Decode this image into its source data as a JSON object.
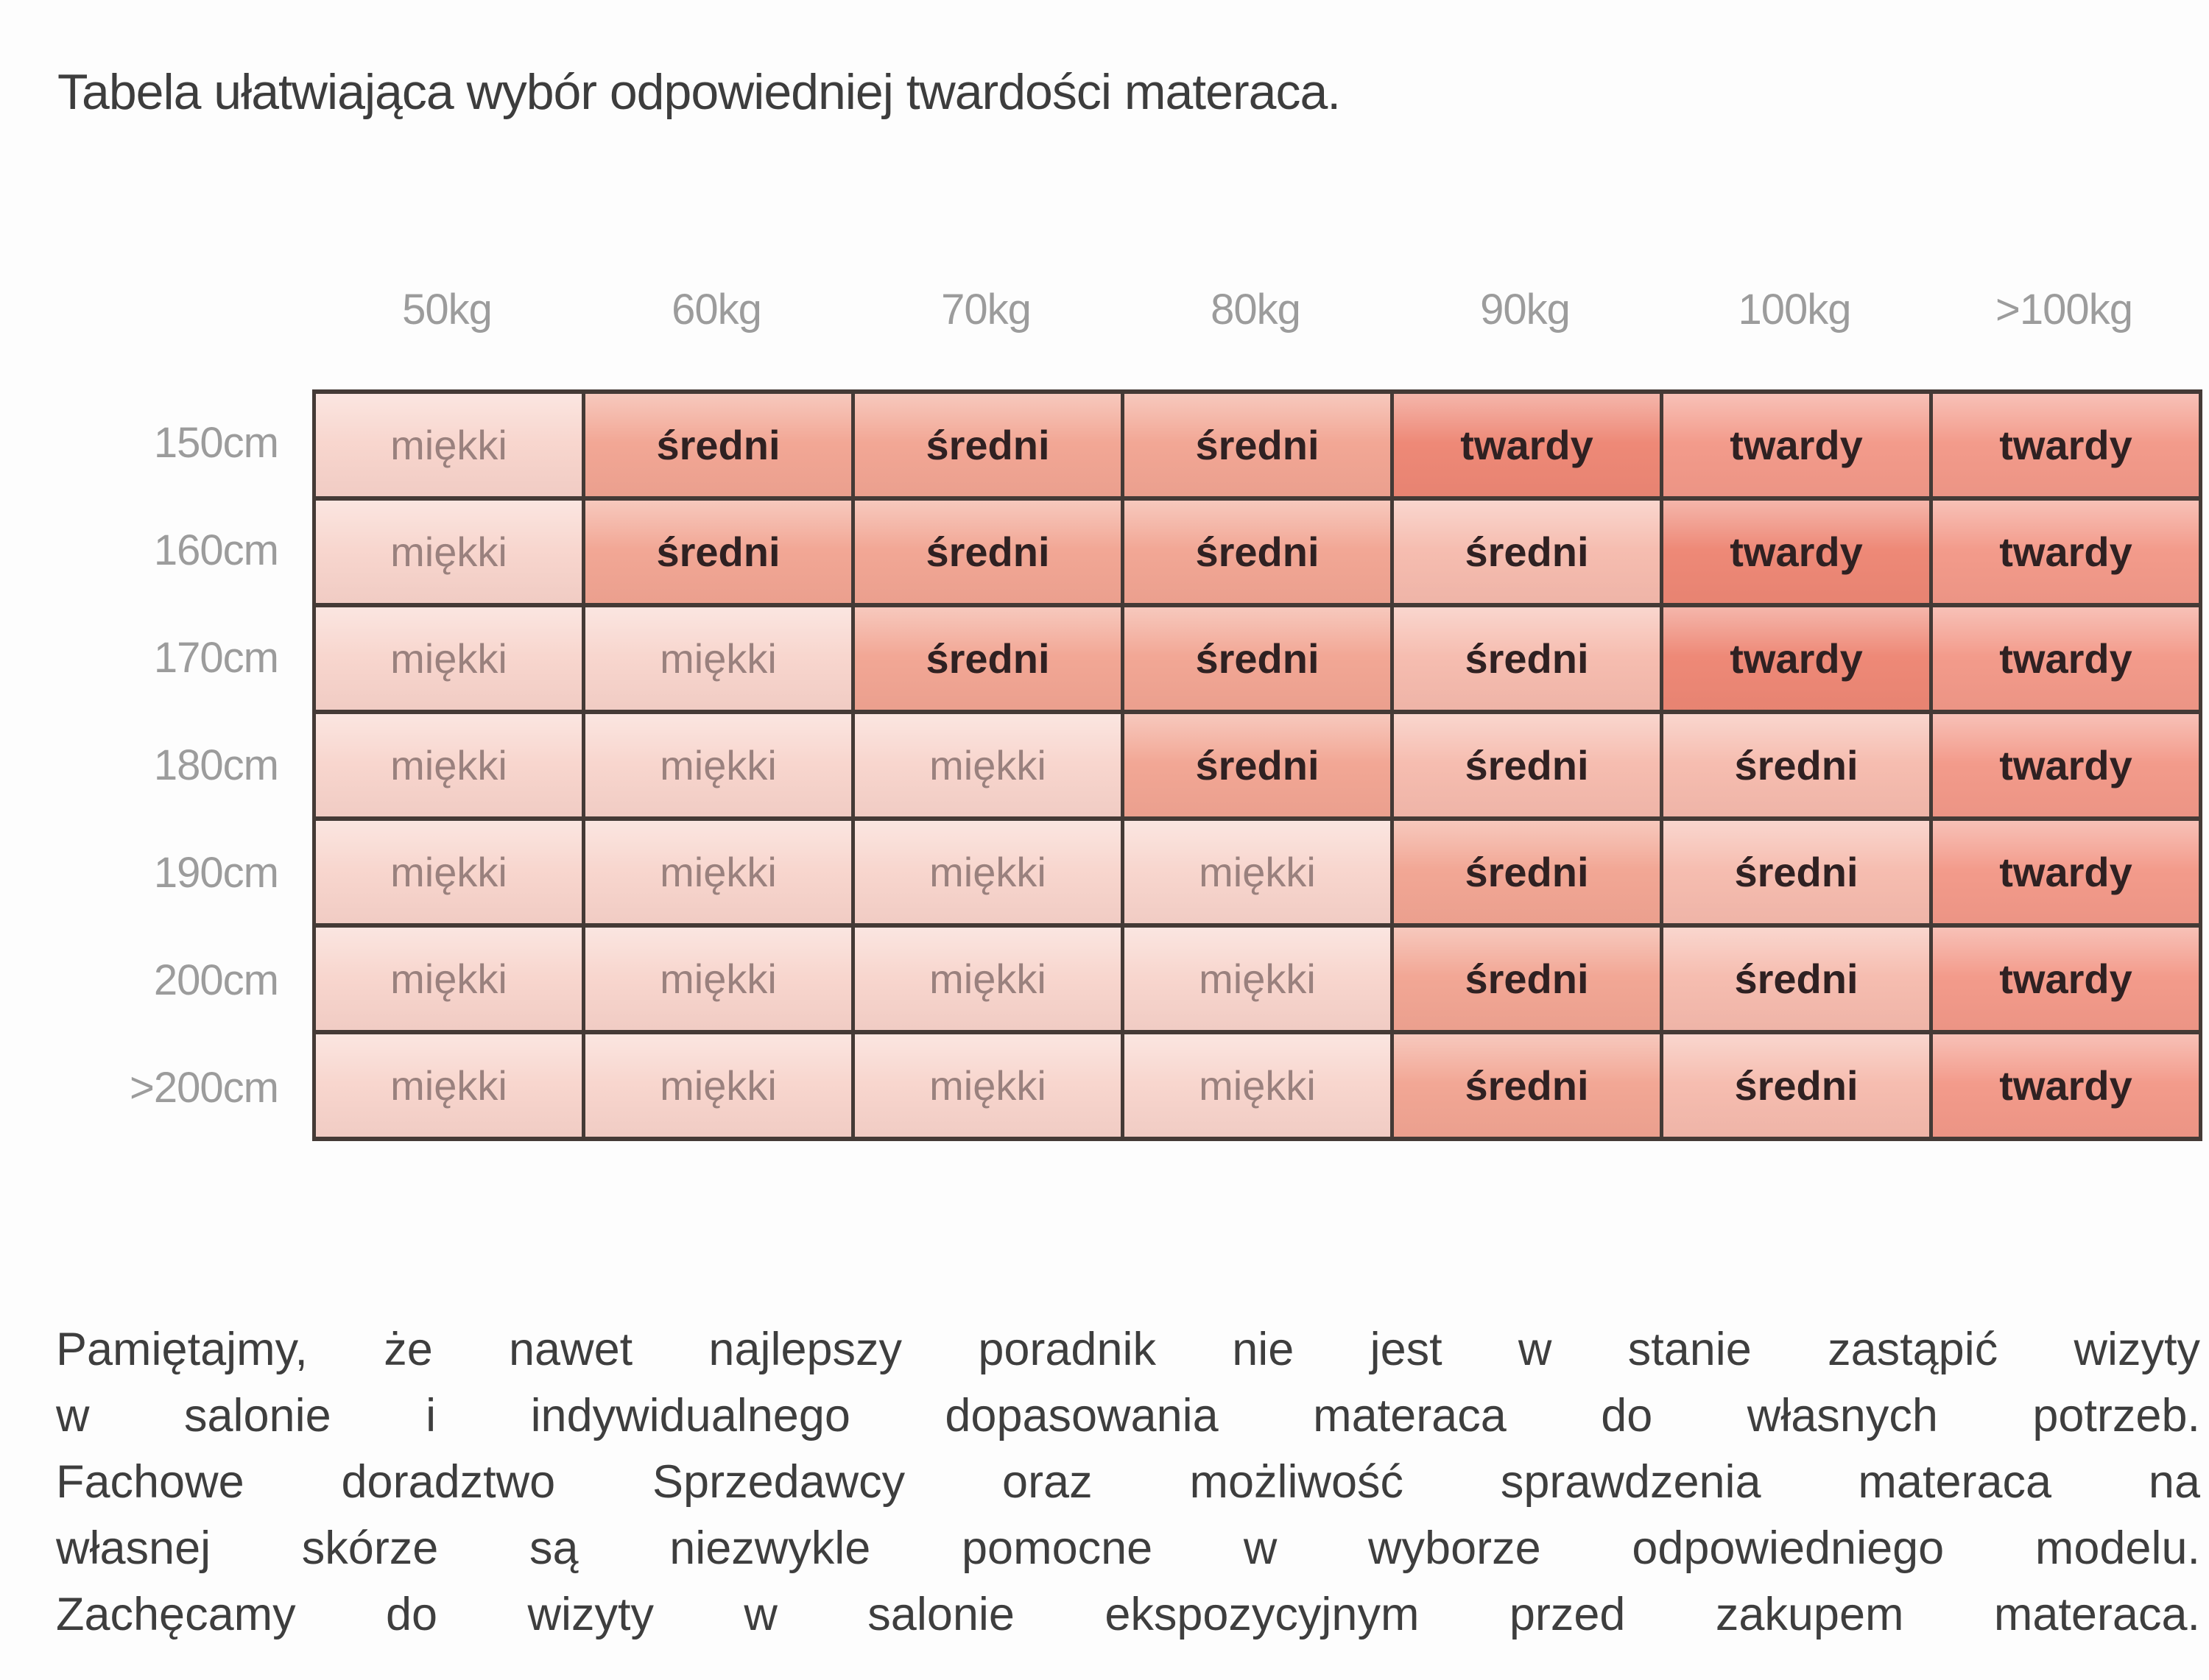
{
  "title": "Tabela ułatwiająca wybór odpowiedniej twardości materaca.",
  "table": {
    "col_headers": [
      "50kg",
      "60kg",
      "70kg",
      "80kg",
      "90kg",
      "100kg",
      ">100kg"
    ],
    "row_headers": [
      "150cm",
      "160cm",
      "170cm",
      "180cm",
      "190cm",
      "200cm",
      ">200cm"
    ],
    "firmness_levels": [
      "miękki",
      "średni",
      "twardy"
    ],
    "rows": [
      [
        {
          "label": "miękki",
          "shade": "soft"
        },
        {
          "label": "średni",
          "shade": "mid"
        },
        {
          "label": "średni",
          "shade": "mid"
        },
        {
          "label": "średni",
          "shade": "mid"
        },
        {
          "label": "twardy",
          "shade": "harddark"
        },
        {
          "label": "twardy",
          "shade": "hard"
        },
        {
          "label": "twardy",
          "shade": "hard"
        }
      ],
      [
        {
          "label": "miękki",
          "shade": "soft"
        },
        {
          "label": "średni",
          "shade": "mid"
        },
        {
          "label": "średni",
          "shade": "mid"
        },
        {
          "label": "średni",
          "shade": "mid"
        },
        {
          "label": "średni",
          "shade": "midlight"
        },
        {
          "label": "twardy",
          "shade": "harddark"
        },
        {
          "label": "twardy",
          "shade": "hard"
        }
      ],
      [
        {
          "label": "miękki",
          "shade": "soft"
        },
        {
          "label": "miękki",
          "shade": "soft"
        },
        {
          "label": "średni",
          "shade": "mid"
        },
        {
          "label": "średni",
          "shade": "mid"
        },
        {
          "label": "średni",
          "shade": "midlight"
        },
        {
          "label": "twardy",
          "shade": "harddark"
        },
        {
          "label": "twardy",
          "shade": "hard"
        }
      ],
      [
        {
          "label": "miękki",
          "shade": "soft"
        },
        {
          "label": "miękki",
          "shade": "soft"
        },
        {
          "label": "miękki",
          "shade": "soft"
        },
        {
          "label": "średni",
          "shade": "mid"
        },
        {
          "label": "średni",
          "shade": "midlight"
        },
        {
          "label": "średni",
          "shade": "midlight"
        },
        {
          "label": "twardy",
          "shade": "hard"
        }
      ],
      [
        {
          "label": "miękki",
          "shade": "soft"
        },
        {
          "label": "miękki",
          "shade": "soft"
        },
        {
          "label": "miękki",
          "shade": "soft"
        },
        {
          "label": "miękki",
          "shade": "soft"
        },
        {
          "label": "średni",
          "shade": "mid"
        },
        {
          "label": "średni",
          "shade": "midlight"
        },
        {
          "label": "twardy",
          "shade": "hard"
        }
      ],
      [
        {
          "label": "miękki",
          "shade": "soft"
        },
        {
          "label": "miękki",
          "shade": "soft"
        },
        {
          "label": "miękki",
          "shade": "soft"
        },
        {
          "label": "miękki",
          "shade": "soft"
        },
        {
          "label": "średni",
          "shade": "mid"
        },
        {
          "label": "średni",
          "shade": "midlight"
        },
        {
          "label": "twardy",
          "shade": "hard"
        }
      ],
      [
        {
          "label": "miękki",
          "shade": "soft"
        },
        {
          "label": "miękki",
          "shade": "soft"
        },
        {
          "label": "miękki",
          "shade": "soft"
        },
        {
          "label": "miękki",
          "shade": "soft"
        },
        {
          "label": "średni",
          "shade": "mid"
        },
        {
          "label": "średni",
          "shade": "midlight"
        },
        {
          "label": "twardy",
          "shade": "hard"
        }
      ]
    ]
  },
  "palette": {
    "soft": "#f8d6ce",
    "mid": "#f2a795",
    "midlight": "#f6bdb0",
    "hard": "#f39b8b",
    "harddark": "#ee8977",
    "border": "#443a36",
    "soft_text": "#9a817e",
    "strong_text": "#2f2122",
    "header_text": "#9c9c9c",
    "title_text": "#3d3d3d",
    "body_text": "#3e3e3e"
  },
  "footer": {
    "lines": [
      "Pamiętajmy, że nawet najlepszy poradnik nie jest w stanie zastąpić wizyty",
      "w salonie i indywidualnego dopasowania materaca do własnych potrzeb.",
      "Fachowe doradztwo Sprzedawcy oraz możliwość sprawdzenia materaca na",
      "własnej skórze są niezwykle pomocne w wyborze odpowiedniego modelu.",
      "Zachęcamy do wizyty w salonie ekspozycyjnym przed zakupem materaca."
    ]
  }
}
